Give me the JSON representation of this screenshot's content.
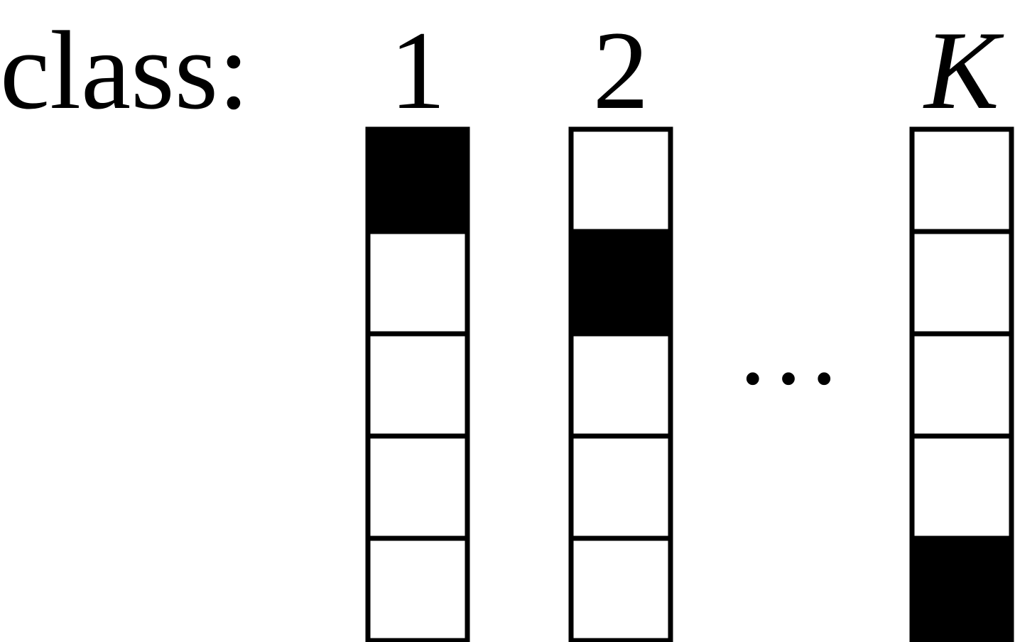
{
  "diagram": {
    "class_prefix": "class:",
    "ellipsis": "…",
    "colors": {
      "filled": "#000000",
      "empty": "#ffffff",
      "stroke": "#000000"
    },
    "vectors": [
      {
        "label": "1",
        "italic": false,
        "length": 5,
        "hot_index": 0
      },
      {
        "label": "2",
        "italic": false,
        "length": 5,
        "hot_index": 1
      },
      {
        "label": "K",
        "italic": true,
        "length": 5,
        "hot_index": 4
      }
    ]
  }
}
